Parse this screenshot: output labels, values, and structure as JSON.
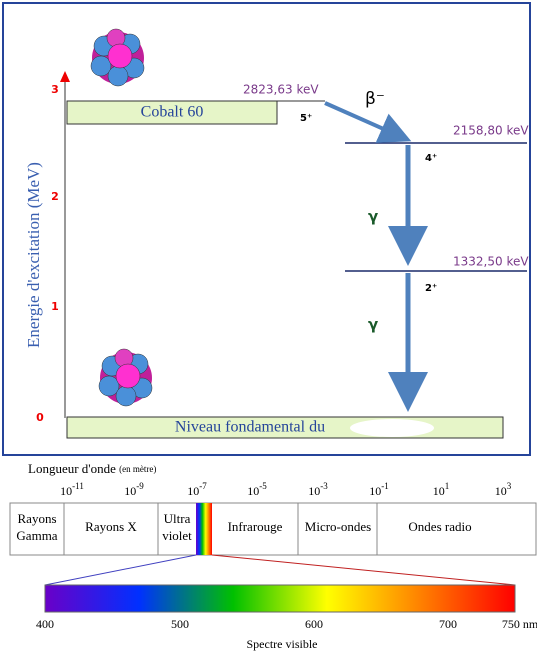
{
  "decay": {
    "axis_title": "Energie d'excitation (MeV)",
    "ticks": [
      "3",
      "2",
      "1",
      "0"
    ],
    "parent": "Cobalt 60",
    "ground": "Niveau fondamental du",
    "levels": [
      {
        "energy": "2823,63 keV",
        "spin": "5⁺"
      },
      {
        "energy": "2158,80 keV",
        "spin": "4⁺"
      },
      {
        "energy": "1332,50 keV",
        "spin": "2⁺"
      }
    ],
    "beta": "β⁻",
    "gammas": [
      "γ",
      "γ"
    ]
  },
  "spectrum": {
    "title": "Longueur d'onde",
    "unit": "(en mètre)",
    "powers": [
      {
        "base": "10",
        "exp": "-11"
      },
      {
        "base": "10",
        "exp": "-9"
      },
      {
        "base": "10",
        "exp": "-7"
      },
      {
        "base": "10",
        "exp": "-5"
      },
      {
        "base": "10",
        "exp": "-3"
      },
      {
        "base": "10",
        "exp": "-1"
      },
      {
        "base": "10",
        "exp": "1"
      },
      {
        "base": "10",
        "exp": "3"
      }
    ],
    "bands": [
      [
        "Rayons",
        "Gamma"
      ],
      [
        "Rayons X"
      ],
      [
        "Ultra",
        "violet"
      ],
      [
        "Infrarouge"
      ],
      [
        "Micro-ondes"
      ],
      [
        "Ondes radio"
      ]
    ],
    "visible_ticks": [
      "400",
      "500",
      "600",
      "700",
      "750 nm"
    ],
    "visible_title": "Spectre visible"
  }
}
